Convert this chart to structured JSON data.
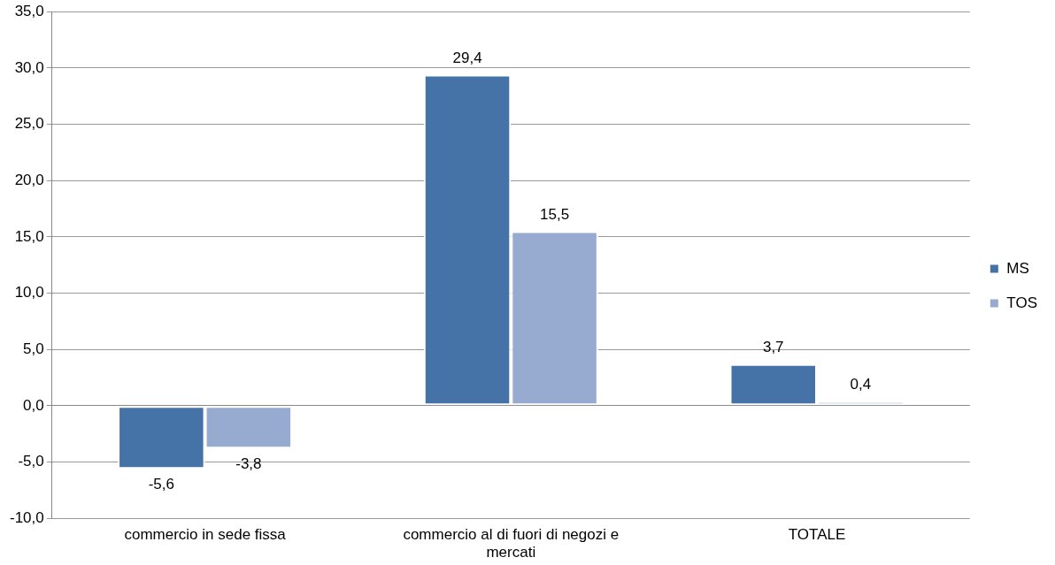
{
  "chart_data": {
    "type": "bar",
    "categories": [
      "commercio in sede fissa",
      "commercio al di fuori di negozi e mercati",
      "TOTALE"
    ],
    "series": [
      {
        "name": "MS",
        "color": "#4573a7",
        "values": [
          -5.6,
          29.4,
          3.7
        ],
        "value_labels": [
          "-5,6",
          "29,4",
          "3,7"
        ]
      },
      {
        "name": "TOS",
        "color": "#97abd1",
        "values": [
          -3.8,
          15.5,
          0.4
        ],
        "value_labels": [
          "-3,8",
          "15,5",
          "0,4"
        ]
      }
    ],
    "ylim": [
      -10,
      35
    ],
    "yticks": [
      {
        "value": -10,
        "label": "-10,0"
      },
      {
        "value": -5,
        "label": "-5,0"
      },
      {
        "value": 0,
        "label": "0,0"
      },
      {
        "value": 5,
        "label": "5,0"
      },
      {
        "value": 10,
        "label": "10,0"
      },
      {
        "value": 15,
        "label": "15,0"
      },
      {
        "value": 20,
        "label": "20,0"
      },
      {
        "value": 25,
        "label": "25,0"
      },
      {
        "value": 30,
        "label": "30,0"
      },
      {
        "value": 35,
        "label": "35,0"
      }
    ],
    "grid": "y",
    "legend": "right"
  }
}
